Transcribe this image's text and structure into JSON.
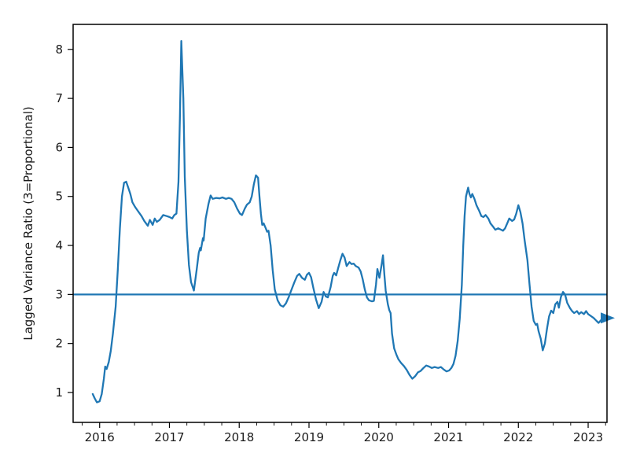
{
  "figure": {
    "background": "#ffffff"
  },
  "chart_data": {
    "type": "line",
    "title": "",
    "xlabel": "",
    "ylabel": "Lagged Variance Ratio (3=Proportional)",
    "grid": false,
    "legend": null,
    "x_axis": {
      "lim": [
        2015.62,
        2023.27
      ],
      "major_ticks": [
        2016,
        2017,
        2018,
        2019,
        2020,
        2021,
        2022,
        2023
      ],
      "minor_tick_step": 0.25
    },
    "y_axis": {
      "lim": [
        0.39,
        8.51
      ],
      "major_ticks": [
        1,
        2,
        3,
        4,
        5,
        6,
        7,
        8
      ]
    },
    "colors": {
      "line": "#1f77b4",
      "reference_line": "#1f77b4",
      "axis": "#000000",
      "text": "#1a1a1a"
    },
    "reference_line_y": 3,
    "end_marker": {
      "shape": "triangle-right",
      "x": 2023.27,
      "y": 2.52,
      "color": "#1f77b4"
    },
    "series": [
      {
        "name": "Lagged Variance Ratio",
        "points": [
          [
            2015.9,
            0.97
          ],
          [
            2015.93,
            0.88
          ],
          [
            2015.96,
            0.8
          ],
          [
            2016.0,
            0.82
          ],
          [
            2016.03,
            0.97
          ],
          [
            2016.06,
            1.28
          ],
          [
            2016.08,
            1.53
          ],
          [
            2016.1,
            1.48
          ],
          [
            2016.13,
            1.62
          ],
          [
            2016.16,
            1.85
          ],
          [
            2016.19,
            2.2
          ],
          [
            2016.23,
            2.75
          ],
          [
            2016.26,
            3.5
          ],
          [
            2016.29,
            4.35
          ],
          [
            2016.32,
            5.0
          ],
          [
            2016.35,
            5.28
          ],
          [
            2016.38,
            5.3
          ],
          [
            2016.41,
            5.18
          ],
          [
            2016.44,
            5.05
          ],
          [
            2016.47,
            4.88
          ],
          [
            2016.51,
            4.78
          ],
          [
            2016.55,
            4.7
          ],
          [
            2016.6,
            4.6
          ],
          [
            2016.64,
            4.5
          ],
          [
            2016.69,
            4.4
          ],
          [
            2016.72,
            4.52
          ],
          [
            2016.76,
            4.42
          ],
          [
            2016.79,
            4.55
          ],
          [
            2016.82,
            4.48
          ],
          [
            2016.86,
            4.52
          ],
          [
            2016.91,
            4.62
          ],
          [
            2016.96,
            4.6
          ],
          [
            2017.0,
            4.58
          ],
          [
            2017.04,
            4.55
          ],
          [
            2017.07,
            4.62
          ],
          [
            2017.1,
            4.65
          ],
          [
            2017.13,
            5.3
          ],
          [
            2017.15,
            6.6
          ],
          [
            2017.17,
            8.17
          ],
          [
            2017.2,
            7.0
          ],
          [
            2017.22,
            5.4
          ],
          [
            2017.25,
            4.3
          ],
          [
            2017.28,
            3.6
          ],
          [
            2017.31,
            3.25
          ],
          [
            2017.35,
            3.08
          ],
          [
            2017.39,
            3.5
          ],
          [
            2017.42,
            3.85
          ],
          [
            2017.44,
            3.95
          ],
          [
            2017.45,
            3.9
          ],
          [
            2017.48,
            4.15
          ],
          [
            2017.49,
            4.1
          ],
          [
            2017.52,
            4.55
          ],
          [
            2017.56,
            4.85
          ],
          [
            2017.59,
            5.02
          ],
          [
            2017.62,
            4.95
          ],
          [
            2017.67,
            4.97
          ],
          [
            2017.72,
            4.96
          ],
          [
            2017.76,
            4.98
          ],
          [
            2017.81,
            4.95
          ],
          [
            2017.85,
            4.97
          ],
          [
            2017.89,
            4.95
          ],
          [
            2017.93,
            4.88
          ],
          [
            2017.97,
            4.75
          ],
          [
            2018.01,
            4.65
          ],
          [
            2018.04,
            4.62
          ],
          [
            2018.08,
            4.75
          ],
          [
            2018.11,
            4.83
          ],
          [
            2018.15,
            4.88
          ],
          [
            2018.18,
            5.0
          ],
          [
            2018.21,
            5.25
          ],
          [
            2018.24,
            5.43
          ],
          [
            2018.27,
            5.38
          ],
          [
            2018.29,
            5.0
          ],
          [
            2018.31,
            4.65
          ],
          [
            2018.33,
            4.42
          ],
          [
            2018.35,
            4.45
          ],
          [
            2018.38,
            4.35
          ],
          [
            2018.4,
            4.28
          ],
          [
            2018.42,
            4.3
          ],
          [
            2018.45,
            4.0
          ],
          [
            2018.48,
            3.5
          ],
          [
            2018.51,
            3.1
          ],
          [
            2018.55,
            2.88
          ],
          [
            2018.59,
            2.78
          ],
          [
            2018.63,
            2.75
          ],
          [
            2018.67,
            2.82
          ],
          [
            2018.71,
            2.95
          ],
          [
            2018.75,
            3.1
          ],
          [
            2018.79,
            3.25
          ],
          [
            2018.83,
            3.38
          ],
          [
            2018.86,
            3.42
          ],
          [
            2018.9,
            3.34
          ],
          [
            2018.94,
            3.3
          ],
          [
            2018.97,
            3.4
          ],
          [
            2019.0,
            3.44
          ],
          [
            2019.03,
            3.35
          ],
          [
            2019.06,
            3.15
          ],
          [
            2019.1,
            2.9
          ],
          [
            2019.14,
            2.72
          ],
          [
            2019.18,
            2.85
          ],
          [
            2019.21,
            3.05
          ],
          [
            2019.24,
            2.96
          ],
          [
            2019.27,
            2.94
          ],
          [
            2019.31,
            3.15
          ],
          [
            2019.34,
            3.38
          ],
          [
            2019.36,
            3.44
          ],
          [
            2019.39,
            3.39
          ],
          [
            2019.42,
            3.55
          ],
          [
            2019.45,
            3.7
          ],
          [
            2019.48,
            3.83
          ],
          [
            2019.51,
            3.75
          ],
          [
            2019.54,
            3.58
          ],
          [
            2019.58,
            3.66
          ],
          [
            2019.61,
            3.62
          ],
          [
            2019.64,
            3.63
          ],
          [
            2019.67,
            3.58
          ],
          [
            2019.71,
            3.55
          ],
          [
            2019.74,
            3.47
          ],
          [
            2019.77,
            3.31
          ],
          [
            2019.8,
            3.1
          ],
          [
            2019.83,
            2.94
          ],
          [
            2019.86,
            2.88
          ],
          [
            2019.9,
            2.86
          ],
          [
            2019.93,
            2.87
          ],
          [
            2019.96,
            3.2
          ],
          [
            2019.98,
            3.52
          ],
          [
            2020.01,
            3.34
          ],
          [
            2020.04,
            3.6
          ],
          [
            2020.06,
            3.8
          ],
          [
            2020.08,
            3.4
          ],
          [
            2020.1,
            3.07
          ],
          [
            2020.13,
            2.8
          ],
          [
            2020.15,
            2.68
          ],
          [
            2020.17,
            2.62
          ],
          [
            2020.19,
            2.2
          ],
          [
            2020.22,
            1.9
          ],
          [
            2020.25,
            1.78
          ],
          [
            2020.28,
            1.68
          ],
          [
            2020.32,
            1.6
          ],
          [
            2020.36,
            1.54
          ],
          [
            2020.4,
            1.46
          ],
          [
            2020.44,
            1.36
          ],
          [
            2020.48,
            1.28
          ],
          [
            2020.52,
            1.33
          ],
          [
            2020.56,
            1.41
          ],
          [
            2020.6,
            1.44
          ],
          [
            2020.64,
            1.5
          ],
          [
            2020.68,
            1.55
          ],
          [
            2020.72,
            1.53
          ],
          [
            2020.76,
            1.5
          ],
          [
            2020.8,
            1.52
          ],
          [
            2020.85,
            1.5
          ],
          [
            2020.89,
            1.52
          ],
          [
            2020.93,
            1.47
          ],
          [
            2020.97,
            1.43
          ],
          [
            2021.01,
            1.45
          ],
          [
            2021.04,
            1.5
          ],
          [
            2021.07,
            1.58
          ],
          [
            2021.1,
            1.75
          ],
          [
            2021.13,
            2.05
          ],
          [
            2021.16,
            2.5
          ],
          [
            2021.19,
            3.2
          ],
          [
            2021.21,
            4.0
          ],
          [
            2021.23,
            4.6
          ],
          [
            2021.25,
            5.0
          ],
          [
            2021.28,
            5.18
          ],
          [
            2021.3,
            5.05
          ],
          [
            2021.32,
            4.98
          ],
          [
            2021.34,
            5.05
          ],
          [
            2021.37,
            4.95
          ],
          [
            2021.4,
            4.82
          ],
          [
            2021.44,
            4.7
          ],
          [
            2021.47,
            4.6
          ],
          [
            2021.5,
            4.58
          ],
          [
            2021.53,
            4.62
          ],
          [
            2021.57,
            4.55
          ],
          [
            2021.6,
            4.45
          ],
          [
            2021.64,
            4.38
          ],
          [
            2021.67,
            4.32
          ],
          [
            2021.71,
            4.35
          ],
          [
            2021.74,
            4.33
          ],
          [
            2021.78,
            4.3
          ],
          [
            2021.81,
            4.35
          ],
          [
            2021.84,
            4.45
          ],
          [
            2021.87,
            4.55
          ],
          [
            2021.91,
            4.5
          ],
          [
            2021.94,
            4.53
          ],
          [
            2021.97,
            4.65
          ],
          [
            2022.0,
            4.82
          ],
          [
            2022.03,
            4.68
          ],
          [
            2022.06,
            4.45
          ],
          [
            2022.09,
            4.1
          ],
          [
            2022.13,
            3.7
          ],
          [
            2022.16,
            3.2
          ],
          [
            2022.19,
            2.75
          ],
          [
            2022.22,
            2.46
          ],
          [
            2022.25,
            2.38
          ],
          [
            2022.27,
            2.4
          ],
          [
            2022.29,
            2.25
          ],
          [
            2022.32,
            2.1
          ],
          [
            2022.35,
            1.86
          ],
          [
            2022.38,
            2.0
          ],
          [
            2022.41,
            2.3
          ],
          [
            2022.44,
            2.55
          ],
          [
            2022.47,
            2.67
          ],
          [
            2022.5,
            2.62
          ],
          [
            2022.53,
            2.8
          ],
          [
            2022.56,
            2.85
          ],
          [
            2022.58,
            2.73
          ],
          [
            2022.61,
            2.95
          ],
          [
            2022.64,
            3.05
          ],
          [
            2022.67,
            3.0
          ],
          [
            2022.7,
            2.83
          ],
          [
            2022.74,
            2.72
          ],
          [
            2022.77,
            2.66
          ],
          [
            2022.8,
            2.62
          ],
          [
            2022.84,
            2.66
          ],
          [
            2022.87,
            2.6
          ],
          [
            2022.9,
            2.64
          ],
          [
            2022.94,
            2.6
          ],
          [
            2022.97,
            2.66
          ],
          [
            2023.0,
            2.6
          ],
          [
            2023.04,
            2.56
          ],
          [
            2023.08,
            2.52
          ],
          [
            2023.12,
            2.46
          ],
          [
            2023.15,
            2.42
          ],
          [
            2023.2,
            2.5
          ],
          [
            2023.27,
            2.52
          ]
        ]
      }
    ]
  }
}
